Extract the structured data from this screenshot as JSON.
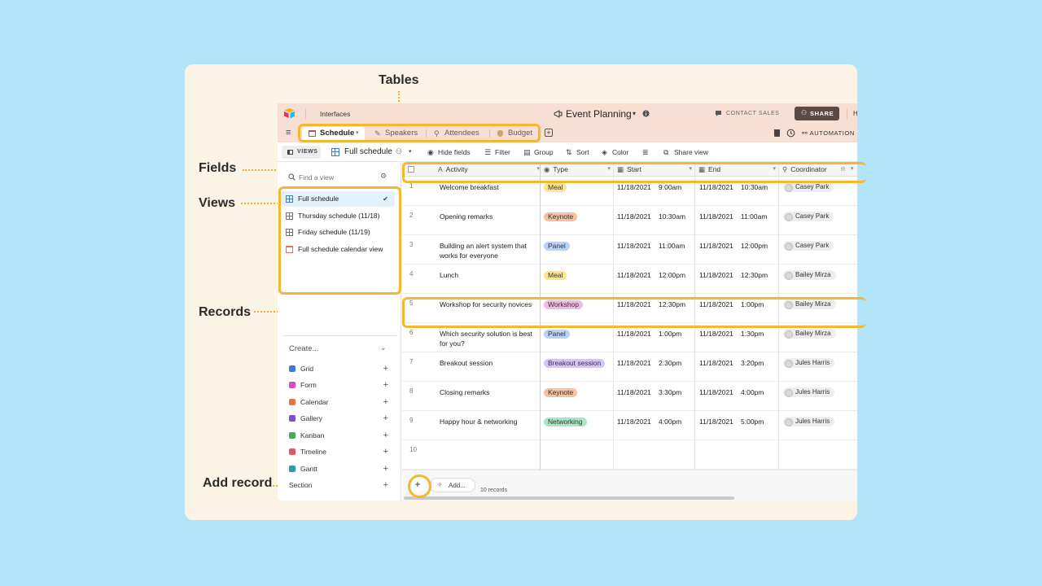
{
  "callouts": {
    "tables": "Tables",
    "fields": "Fields",
    "views": "Views",
    "records": "Records",
    "add_record": "Add record"
  },
  "app": {
    "interfaces": "Interfaces",
    "base_title": "Event Planning",
    "contact_sales": "CONTACT SALES",
    "share": "SHARE",
    "automations": "AUTOMATION",
    "help_initial": "H"
  },
  "tables": [
    {
      "label": "Schedule",
      "active": true
    },
    {
      "label": "Speakers"
    },
    {
      "label": "Attendees"
    },
    {
      "label": "Budget"
    }
  ],
  "toolbar": {
    "views": "VIEWS",
    "current_view": "Full schedule",
    "hide_fields": "Hide fields",
    "filter": "Filter",
    "group": "Group",
    "sort": "Sort",
    "color": "Color",
    "share_view": "Share view"
  },
  "sidebar": {
    "find_placeholder": "Find a view",
    "views": [
      {
        "label": "Full schedule",
        "active": true
      },
      {
        "label": "Thursday schedule (11/18)"
      },
      {
        "label": "Friday schedule (11/19)"
      },
      {
        "label": "Full schedule calendar view"
      }
    ],
    "create_label": "Create...",
    "create_items": [
      {
        "label": "Grid",
        "color": "#3a7bd5"
      },
      {
        "label": "Form",
        "color": "#d94bb6"
      },
      {
        "label": "Calendar",
        "color": "#e8734a"
      },
      {
        "label": "Gallery",
        "color": "#7a4fd8"
      },
      {
        "label": "Kanban",
        "color": "#3fae54"
      },
      {
        "label": "Timeline",
        "color": "#e0566a"
      },
      {
        "label": "Gantt",
        "color": "#2b9fa8"
      }
    ],
    "section_label": "Section"
  },
  "grid": {
    "columns": [
      "Activity",
      "Type",
      "Start",
      "End",
      "Coordinator"
    ],
    "rows": [
      {
        "num": "1",
        "activity": "Welcome breakfast",
        "type": "Meal",
        "type_color": "#fde68a",
        "start_date": "11/18/2021",
        "start_time": "9:00am",
        "end_date": "11/18/2021",
        "end_time": "10:30am",
        "coordinator": "Casey Park"
      },
      {
        "num": "2",
        "activity": "Opening remarks",
        "type": "Keynote",
        "type_color": "#f8c0a0",
        "start_date": "11/18/2021",
        "start_time": "10:30am",
        "end_date": "11/18/2021",
        "end_time": "11:00am",
        "coordinator": "Casey Park"
      },
      {
        "num": "3",
        "activity": "Building an alert system that works for everyone",
        "type": "Panel",
        "type_color": "#b8d2fb",
        "start_date": "11/18/2021",
        "start_time": "11:00am",
        "end_date": "11/18/2021",
        "end_time": "12:00pm",
        "coordinator": "Casey Park"
      },
      {
        "num": "4",
        "activity": "Lunch",
        "type": "Meal",
        "type_color": "#fde68a",
        "start_date": "11/18/2021",
        "start_time": "12:00pm",
        "end_date": "11/18/2021",
        "end_time": "12:30pm",
        "coordinator": "Bailey Mirza"
      },
      {
        "num": "5",
        "activity": "Workshop for security novices",
        "type": "Workshop",
        "type_color": "#f3b8e6",
        "start_date": "11/18/2021",
        "start_time": "12:30pm",
        "end_date": "11/18/2021",
        "end_time": "1:00pm",
        "coordinator": "Bailey Mirza"
      },
      {
        "num": "6",
        "activity": "Which security solution is best for you?",
        "type": "Panel",
        "type_color": "#b8d2fb",
        "start_date": "11/18/2021",
        "start_time": "1:00pm",
        "end_date": "11/18/2021",
        "end_time": "1:30pm",
        "coordinator": "Bailey Mirza"
      },
      {
        "num": "7",
        "activity": "Breakout session",
        "type": "Breakout session",
        "type_color": "#d7c4f7",
        "start_date": "11/18/2021",
        "start_time": "2:30pm",
        "end_date": "11/18/2021",
        "end_time": "3:20pm",
        "coordinator": "Jules Harris"
      },
      {
        "num": "8",
        "activity": "Closing remarks",
        "type": "Keynote",
        "type_color": "#f8c0a0",
        "start_date": "11/18/2021",
        "start_time": "3:30pm",
        "end_date": "11/18/2021",
        "end_time": "4:00pm",
        "coordinator": "Jules Harris"
      },
      {
        "num": "9",
        "activity": "Happy hour & networking",
        "type": "Networking",
        "type_color": "#a9e6c6",
        "start_date": "11/18/2021",
        "start_time": "4:00pm",
        "end_date": "11/18/2021",
        "end_time": "5:00pm",
        "coordinator": "Jules Harris"
      },
      {
        "num": "10"
      }
    ],
    "add_label": "Add...",
    "record_count": "10 records"
  },
  "colors": {
    "highlight": "#f5b731",
    "header_bg": "#f7dfd3",
    "share_button": "#5a4a45"
  }
}
